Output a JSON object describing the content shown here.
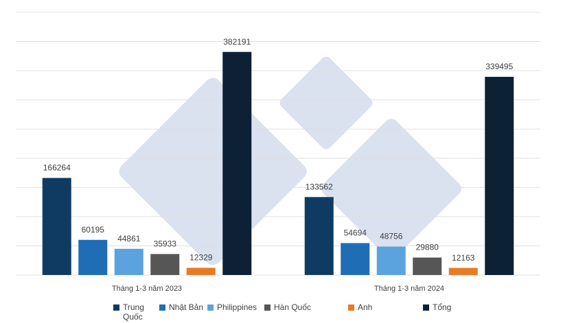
{
  "chart_data": {
    "type": "bar",
    "categories": [
      "Tháng 1-3 năm 2023",
      "Tháng 1-3 năm 2024"
    ],
    "series": [
      {
        "name": "Trung Quốc",
        "color": "#0f3b63",
        "values": [
          166264,
          133562
        ]
      },
      {
        "name": "Nhật Bản",
        "color": "#1f6db4",
        "values": [
          60195,
          54694
        ]
      },
      {
        "name": "Philippines",
        "color": "#5aa3df",
        "values": [
          44861,
          48756
        ]
      },
      {
        "name": "Hàn Quốc",
        "color": "#565656",
        "values": [
          35933,
          29880
        ]
      },
      {
        "name": "Anh",
        "color": "#e97a25",
        "values": [
          12329,
          12163
        ]
      },
      {
        "name": "Tổng",
        "color": "#0c2036",
        "values": [
          382191,
          339495
        ]
      }
    ],
    "ylim": [
      0,
      450000
    ],
    "yticks": [
      0,
      50000,
      100000,
      150000,
      200000,
      250000,
      300000,
      350000,
      400000,
      450000
    ],
    "grid": true
  }
}
